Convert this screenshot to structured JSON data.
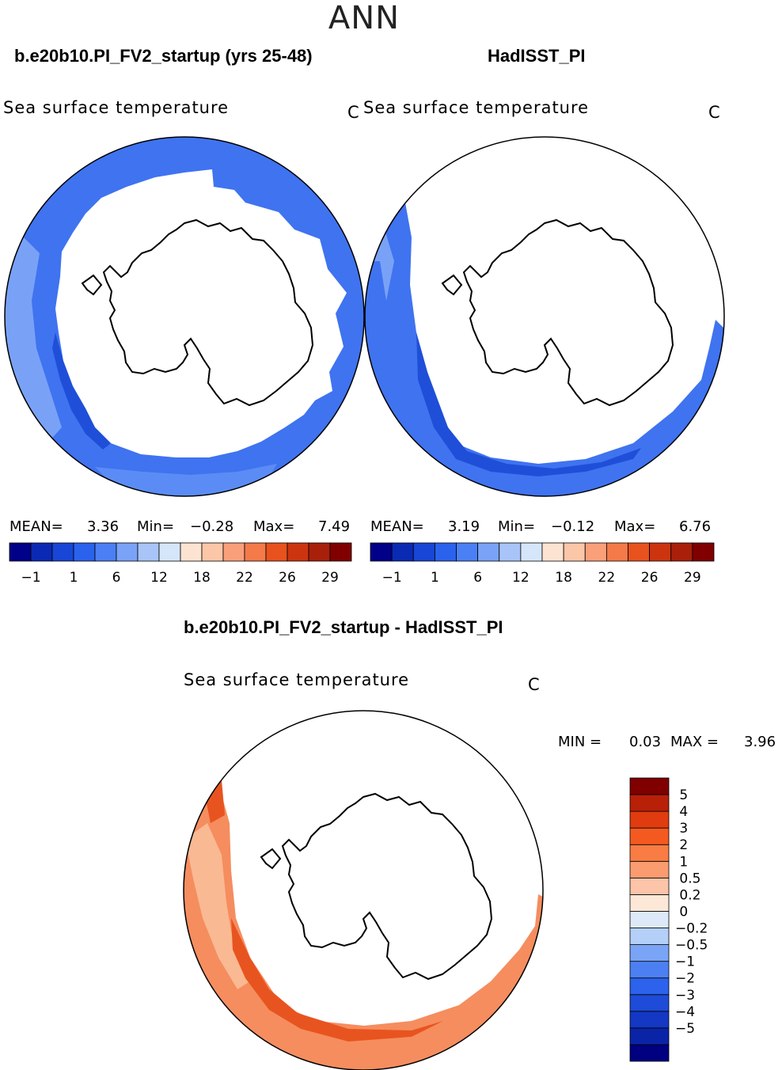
{
  "season": "ANN",
  "panels": [
    {
      "case_title": "b.e20b10.PI_FV2_startup (yrs 25-48)",
      "variable": "Sea surface temperature",
      "units": "C",
      "stats": {
        "mean_label": "MEAN=",
        "mean": "3.36",
        "min_label": "Min=",
        "min": "−0.28",
        "max_label": "Max=",
        "max": "7.49"
      }
    },
    {
      "case_title": "HadISST_PI",
      "variable": "Sea surface temperature",
      "units": "C",
      "stats": {
        "mean_label": "MEAN=",
        "mean": "3.19",
        "min_label": "Min=",
        "min": "−0.12",
        "max_label": "Max=",
        "max": "6.76"
      }
    }
  ],
  "diff": {
    "title": "b.e20b10.PI_FV2_startup - HadISST_PI",
    "variable": "Sea surface temperature",
    "units": "C",
    "stats": {
      "min_label": "MIN =",
      "min": "0.03",
      "max_label": "MAX =",
      "max": "3.96"
    }
  },
  "abs_colorbar": {
    "colors": [
      "#000088",
      "#0a2ab4",
      "#1846d6",
      "#2a62ee",
      "#4a80f4",
      "#7aa2f7",
      "#a8c4f8",
      "#d6e6fa",
      "#fde4d2",
      "#fcc6a8",
      "#f9a07a",
      "#f47a4a",
      "#e8521e",
      "#cc3410",
      "#a8200a",
      "#800000"
    ],
    "tick_labels": [
      "−1",
      "1",
      "6",
      "12",
      "18",
      "22",
      "26",
      "29"
    ]
  },
  "diff_colorbar": {
    "colors": [
      "#000080",
      "#0a24a8",
      "#1438c4",
      "#1e4cd8",
      "#2c62ec",
      "#4c80f2",
      "#7aa4f6",
      "#b4d0f8",
      "#dde9f8",
      "#fde8d8",
      "#fcc4a8",
      "#fb9c70",
      "#f87c44",
      "#f45a20",
      "#e03c10",
      "#b82008",
      "#800000"
    ],
    "labels": [
      "5",
      "4",
      "3",
      "2",
      "1",
      "0.5",
      "0.2",
      "0",
      "−0.2",
      "−0.5",
      "−1",
      "−2",
      "−3",
      "−4",
      "−5"
    ]
  },
  "colors": {
    "ocean_blue": "#3f73f0",
    "ocean_blue_light": "#79a2f7",
    "ocean_blue_dark": "#1f4fd8",
    "diff_orange": "#f58d5f",
    "diff_orange_dark": "#e8541f",
    "diff_orange_light": "#f9b993"
  }
}
